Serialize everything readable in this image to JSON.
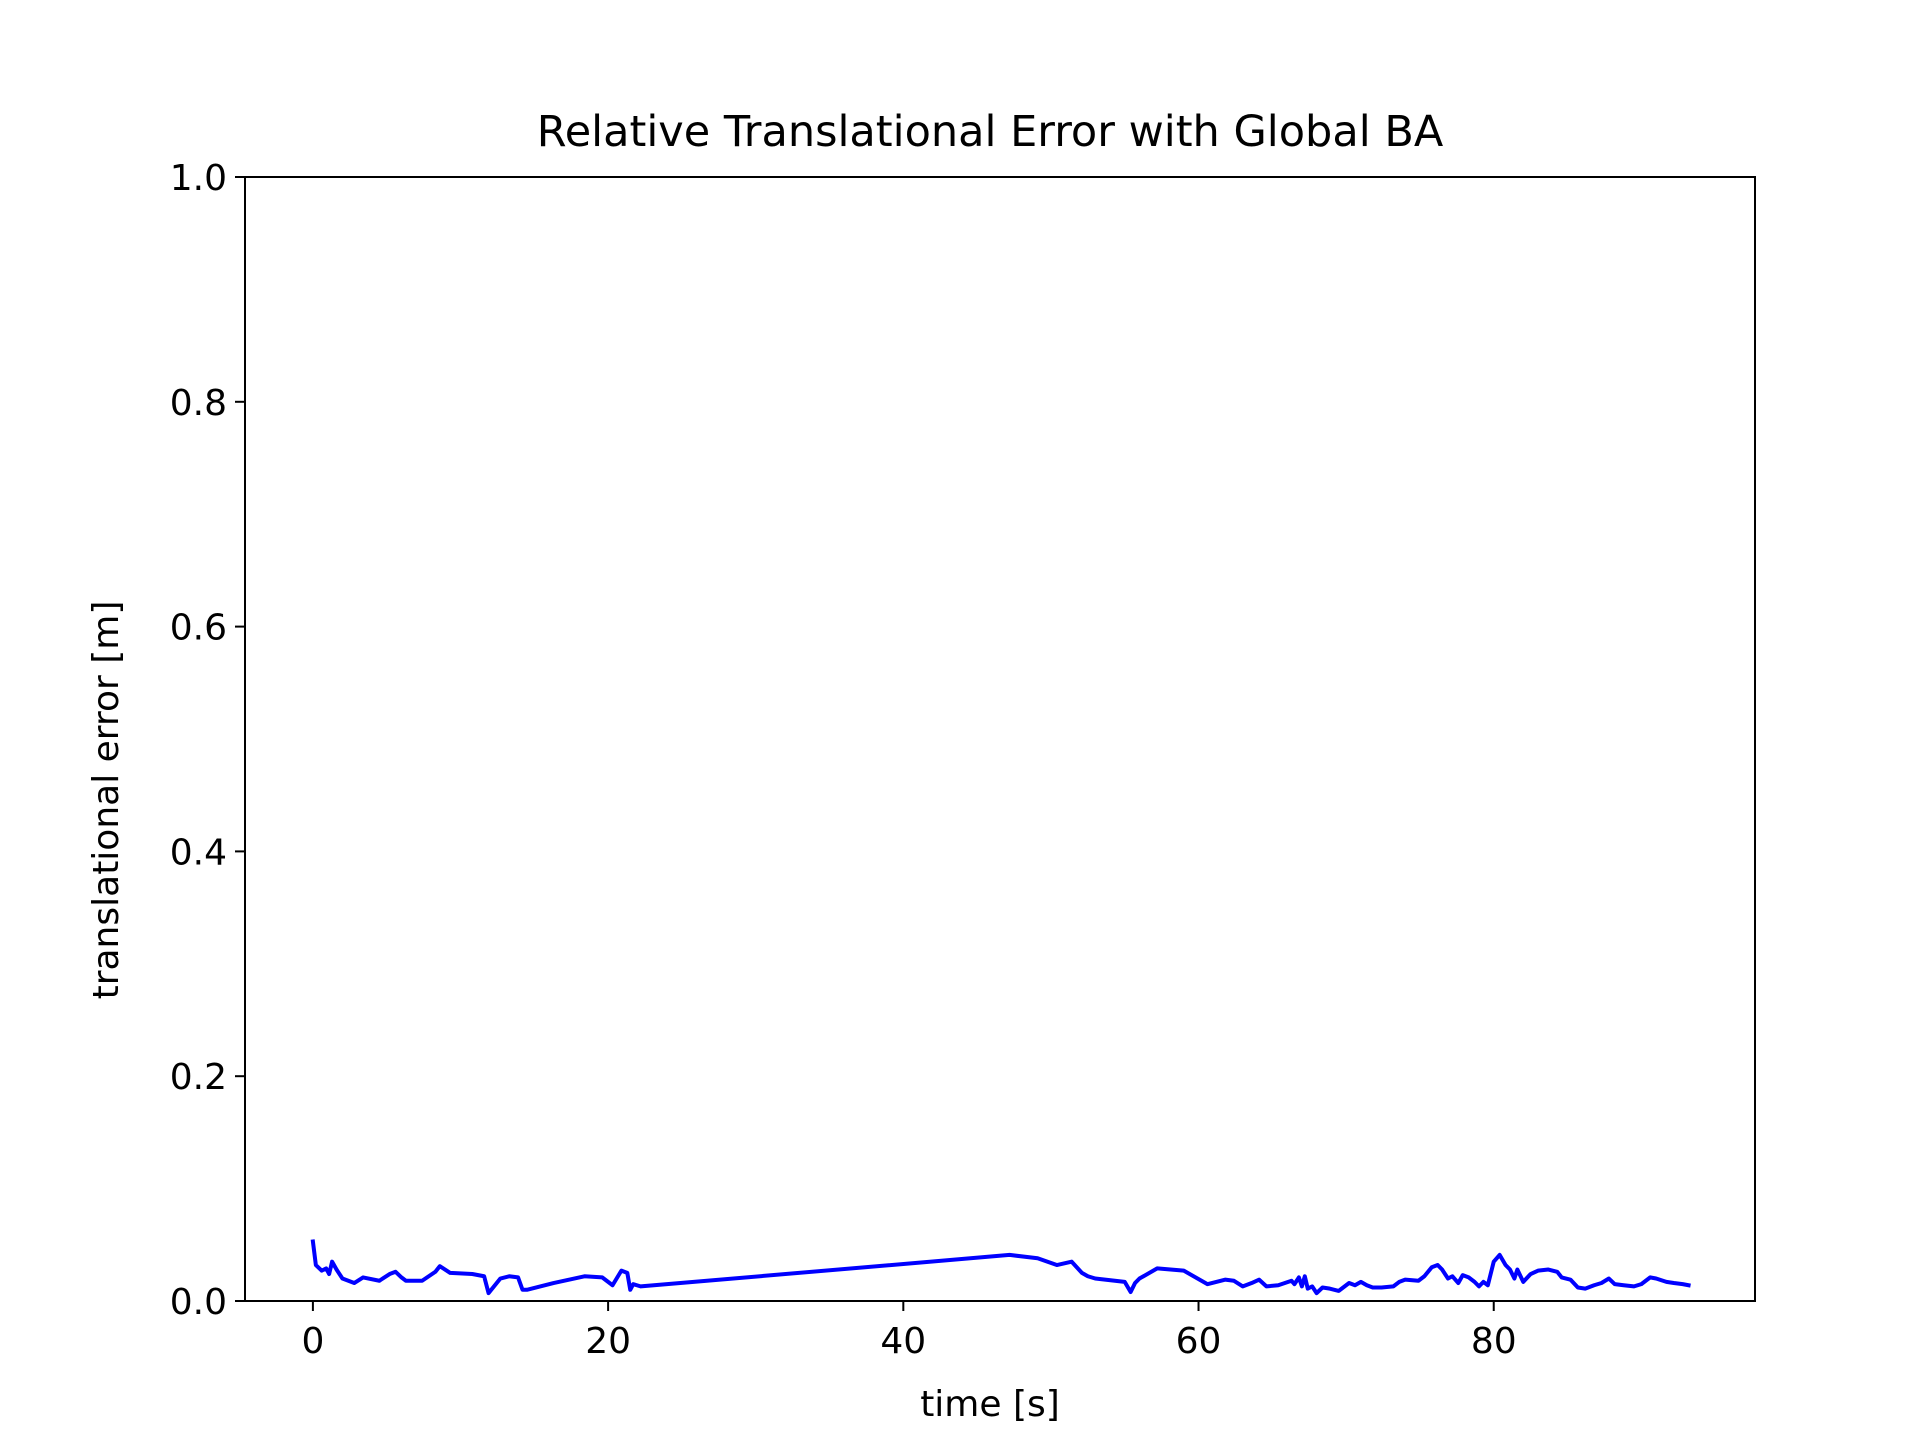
{
  "chart_data": {
    "type": "line",
    "title": "Relative Translational Error with Global BA",
    "xlabel": "time [s]",
    "ylabel": "translational error [m]",
    "xlim": [
      -4.6,
      97.7
    ],
    "ylim": [
      0.0,
      1.0
    ],
    "xticks": [
      0,
      20,
      40,
      60,
      80
    ],
    "xtick_labels": [
      "0",
      "20",
      "40",
      "60",
      "80"
    ],
    "yticks": [
      0.0,
      0.2,
      0.4,
      0.6,
      0.8,
      1.0
    ],
    "ytick_labels": [
      "0.0",
      "0.2",
      "0.4",
      "0.6",
      "0.8",
      "1.0"
    ],
    "grid": false,
    "series": [
      {
        "color": "#0000ff",
        "x": [
          0.0,
          0.2,
          0.6,
          0.9,
          1.1,
          1.3,
          1.6,
          2.0,
          2.8,
          3.4,
          4.5,
          5.2,
          5.6,
          6.0,
          6.3,
          7.4,
          8.3,
          8.6,
          9.3,
          10.8,
          11.6,
          11.9,
          12.7,
          13.3,
          13.9,
          14.2,
          14.5,
          16.3,
          18.4,
          19.6,
          20.3,
          20.9,
          21.3,
          21.5,
          21.7,
          22.2,
          47.2,
          49.1,
          50.4,
          51.4,
          52.1,
          52.5,
          53.0,
          55.0,
          55.4,
          55.7,
          56.0,
          57.2,
          59.0,
          60.6,
          61.8,
          62.4,
          63.0,
          63.6,
          64.1,
          64.6,
          65.4,
          66.3,
          66.5,
          66.8,
          67.0,
          67.2,
          67.4,
          67.7,
          68.0,
          68.4,
          68.9,
          69.5,
          70.2,
          70.6,
          71.0,
          71.4,
          71.8,
          72.4,
          73.2,
          73.6,
          74.0,
          74.9,
          75.3,
          75.8,
          76.2,
          76.5,
          76.9,
          77.2,
          77.6,
          77.9,
          78.3,
          78.7,
          79.0,
          79.3,
          79.6,
          80.0,
          80.4,
          80.8,
          81.1,
          81.4,
          81.6,
          82.0,
          82.5,
          83.0,
          83.7,
          84.3,
          84.6,
          85.2,
          85.7,
          86.2,
          86.8,
          87.3,
          87.8,
          88.2,
          88.8,
          89.5,
          90.0,
          90.6,
          91.0,
          91.7,
          92.2,
          92.8,
          93.2
        ],
        "y": [
          0.053,
          0.032,
          0.027,
          0.029,
          0.024,
          0.035,
          0.028,
          0.02,
          0.016,
          0.021,
          0.018,
          0.024,
          0.026,
          0.021,
          0.018,
          0.018,
          0.026,
          0.031,
          0.025,
          0.024,
          0.022,
          0.007,
          0.02,
          0.022,
          0.021,
          0.01,
          0.01,
          0.016,
          0.022,
          0.021,
          0.014,
          0.027,
          0.025,
          0.01,
          0.015,
          0.013,
          0.041,
          0.038,
          0.032,
          0.035,
          0.025,
          0.022,
          0.02,
          0.017,
          0.008,
          0.016,
          0.02,
          0.029,
          0.027,
          0.015,
          0.019,
          0.018,
          0.013,
          0.016,
          0.019,
          0.013,
          0.014,
          0.018,
          0.015,
          0.021,
          0.013,
          0.022,
          0.011,
          0.013,
          0.007,
          0.012,
          0.011,
          0.009,
          0.016,
          0.014,
          0.017,
          0.014,
          0.012,
          0.012,
          0.013,
          0.017,
          0.019,
          0.018,
          0.022,
          0.03,
          0.032,
          0.028,
          0.02,
          0.022,
          0.016,
          0.023,
          0.021,
          0.017,
          0.013,
          0.017,
          0.014,
          0.035,
          0.041,
          0.032,
          0.028,
          0.02,
          0.028,
          0.017,
          0.024,
          0.027,
          0.028,
          0.026,
          0.021,
          0.019,
          0.012,
          0.011,
          0.014,
          0.016,
          0.02,
          0.015,
          0.014,
          0.013,
          0.015,
          0.021,
          0.02,
          0.017,
          0.016,
          0.015,
          0.014
        ]
      }
    ]
  }
}
